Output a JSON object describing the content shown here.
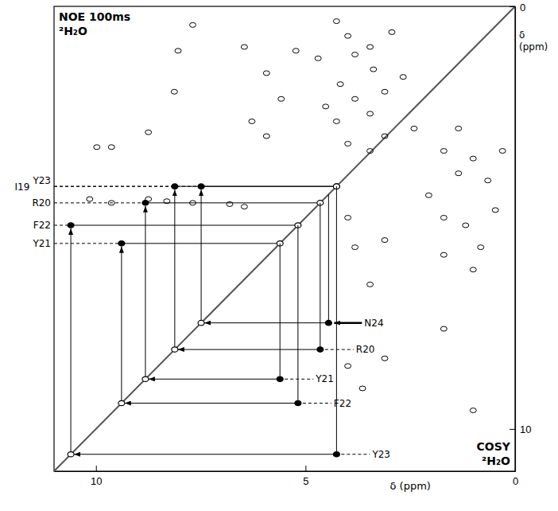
{
  "chart_data": {
    "type": "nmr_2d",
    "noesy_label": "NOE 100ms",
    "noesy_solvent": "²H₂O",
    "cosy_label": "COSY",
    "cosy_solvent": "²H₂O",
    "x_label": "δ (ppm)",
    "y_label": "δ (ppm)",
    "xlim": [
      11,
      0
    ],
    "ylim": [
      0,
      11
    ],
    "xticks": [
      10,
      5,
      0
    ],
    "yticks": [
      0,
      10
    ],
    "residues": [
      {
        "label": "I19",
        "ha": 4.26,
        "hn": null
      },
      {
        "label": "R20",
        "ha": 4.65,
        "hn": 8.12
      },
      {
        "label": "Y21",
        "ha": 5.61,
        "hn": 8.82
      },
      {
        "label": "F22",
        "ha": 5.18,
        "hn": 9.39
      },
      {
        "label": "Y23",
        "ha": 4.26,
        "hn": 10.6
      },
      {
        "label": "N24",
        "ha": 4.45,
        "hn": 7.49
      }
    ],
    "noe_peaks": {
      "x": [
        4.26,
        3.99,
        3.82,
        3.46,
        3.38,
        4.17,
        3.82,
        3.46,
        4.26,
        3.11,
        3.99,
        3.46,
        4.7,
        4.52,
        3.11,
        2.94,
        2.67,
        5.93,
        6.46,
        5.23,
        7.69,
        8.04,
        8.13,
        8.75,
        9.98,
        9.63,
        6.28,
        5.93,
        5.58,
        10.15,
        9.63,
        8.75,
        8.31,
        7.69,
        6.81,
        6.46
      ],
      "y": [
        0.35,
        0.7,
        1.14,
        0.96,
        1.49,
        1.84,
        2.19,
        2.54,
        2.72,
        2.02,
        3.25,
        3.42,
        1.23,
        2.37,
        3.07,
        0.61,
        1.67,
        1.58,
        0.96,
        1.05,
        0.44,
        1.05,
        2.02,
        2.98,
        3.33,
        3.33,
        2.72,
        3.07,
        2.19,
        4.56,
        4.65,
        4.56,
        4.61,
        4.65,
        4.68,
        4.74
      ]
    },
    "cosy_peaks": {
      "x": [
        1.7,
        1.35,
        1.0,
        0.65,
        2.06,
        1.7,
        1.18,
        0.82,
        0.47,
        1.7,
        2.41,
        0.3,
        1.0,
        1.35,
        3.99,
        3.82,
        3.11,
        3.46,
        3.99,
        3.64,
        3.11,
        1.0,
        1.7
      ],
      "y": [
        3.42,
        3.95,
        3.6,
        4.12,
        4.47,
        5.0,
        5.18,
        5.7,
        4.82,
        5.88,
        2.89,
        3.42,
        6.23,
        2.89,
        5.0,
        5.7,
        5.53,
        6.58,
        8.51,
        9.04,
        8.33,
        9.56,
        7.63
      ]
    }
  }
}
